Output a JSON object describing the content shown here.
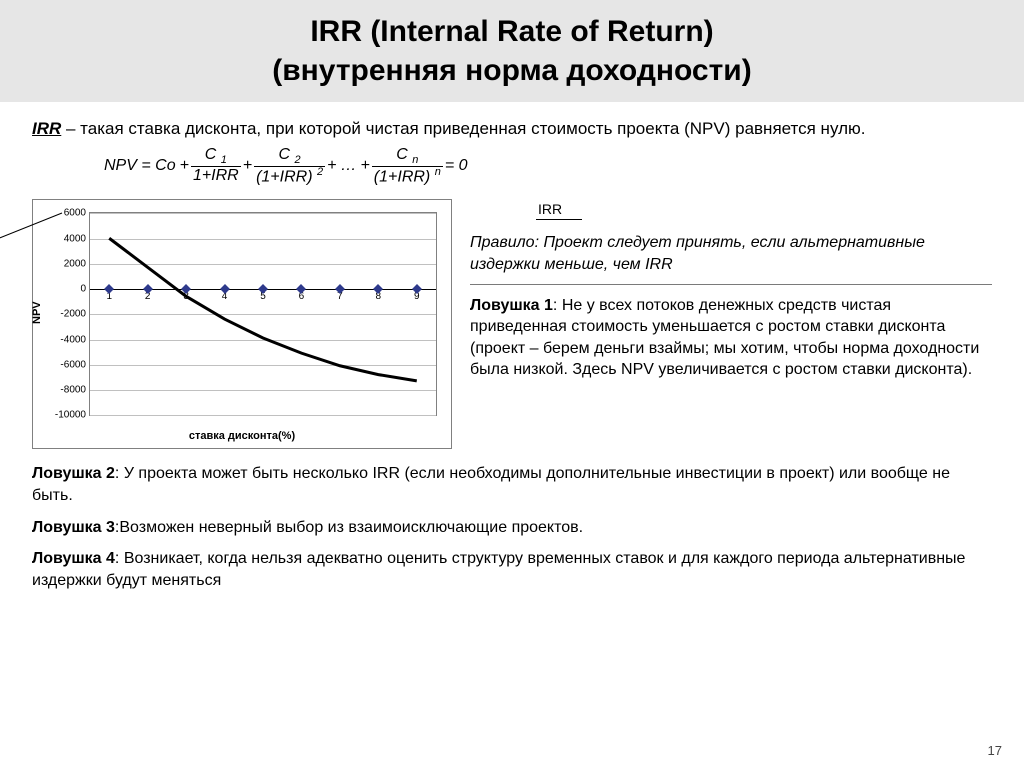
{
  "header": {
    "line1": "IRR (Internal Rate of Return)",
    "line2": "(внутренняя норма доходности)"
  },
  "definition": {
    "irr_label": "IRR",
    "text": " – такая ставка дисконта, при которой чистая приведенная стоимость проекта (NPV) равняется нулю."
  },
  "formula": {
    "lhs": "NPV = Co",
    "plus": "+",
    "c": "C",
    "one_plus_irr": "1+IRR",
    "paren": "(1+IRR)",
    "dots": "…",
    "eq_zero": "= 0",
    "sub1": "1",
    "sub2": "2",
    "subn": "n",
    "sup2": "2",
    "supn": "n"
  },
  "chart": {
    "y_label": "NPV",
    "x_label": "ставка дисконта(%)",
    "irr_label": "IRR",
    "ylim": [
      -10000,
      6000
    ],
    "ytick_step": 2000,
    "yticks": [
      "6000",
      "4000",
      "2000",
      "0",
      "-2000",
      "-4000",
      "-6000",
      "-8000",
      "-10000"
    ],
    "x_categories": [
      "1",
      "2",
      "3",
      "4",
      "5",
      "6",
      "7",
      "8",
      "9"
    ],
    "curve_points": [
      {
        "x": 1,
        "y": 4000
      },
      {
        "x": 2,
        "y": 1700
      },
      {
        "x": 3,
        "y": -600
      },
      {
        "x": 4,
        "y": -2400
      },
      {
        "x": 5,
        "y": -3900
      },
      {
        "x": 6,
        "y": -5100
      },
      {
        "x": 7,
        "y": -6100
      },
      {
        "x": 8,
        "y": -6800
      },
      {
        "x": 9,
        "y": -7300
      }
    ],
    "marker_y": 0,
    "grid_color": "#c0c0c0",
    "curve_color": "#000000",
    "curve_width": 3,
    "marker_color": "#2e3a8c",
    "border_color": "#808080",
    "background_color": "#ffffff"
  },
  "rule": {
    "label": "Правило",
    "text": ": Проект следует принять, если альтернативные издержки меньше, чем IRR"
  },
  "traps": {
    "t1_label": "Ловушка 1",
    "t1_text": ": Не у всех потоков денежных средств чистая приведенная стоимость уменьшается с ростом ставки дисконта (проект – берем деньги взаймы; мы хотим, чтобы норма доходности была низкой. Здесь NPV увеличивается с ростом ставки дисконта).",
    "t2_label": "Ловушка 2",
    "t2_text": ": У проекта может быть несколько IRR (если необходимы дополнительные инвестиции в проект) или вообще не быть.",
    "t3_label": "Ловушка 3",
    "t3_text": ":Возможен неверный выбор из взаимоисключающие проектов.",
    "t4_label": "Ловушка 4",
    "t4_text": ": Возникает, когда нельзя адекватно оценить структуру временных ставок и для каждого периода альтернативные издержки будут меняться"
  },
  "page_number": "17"
}
